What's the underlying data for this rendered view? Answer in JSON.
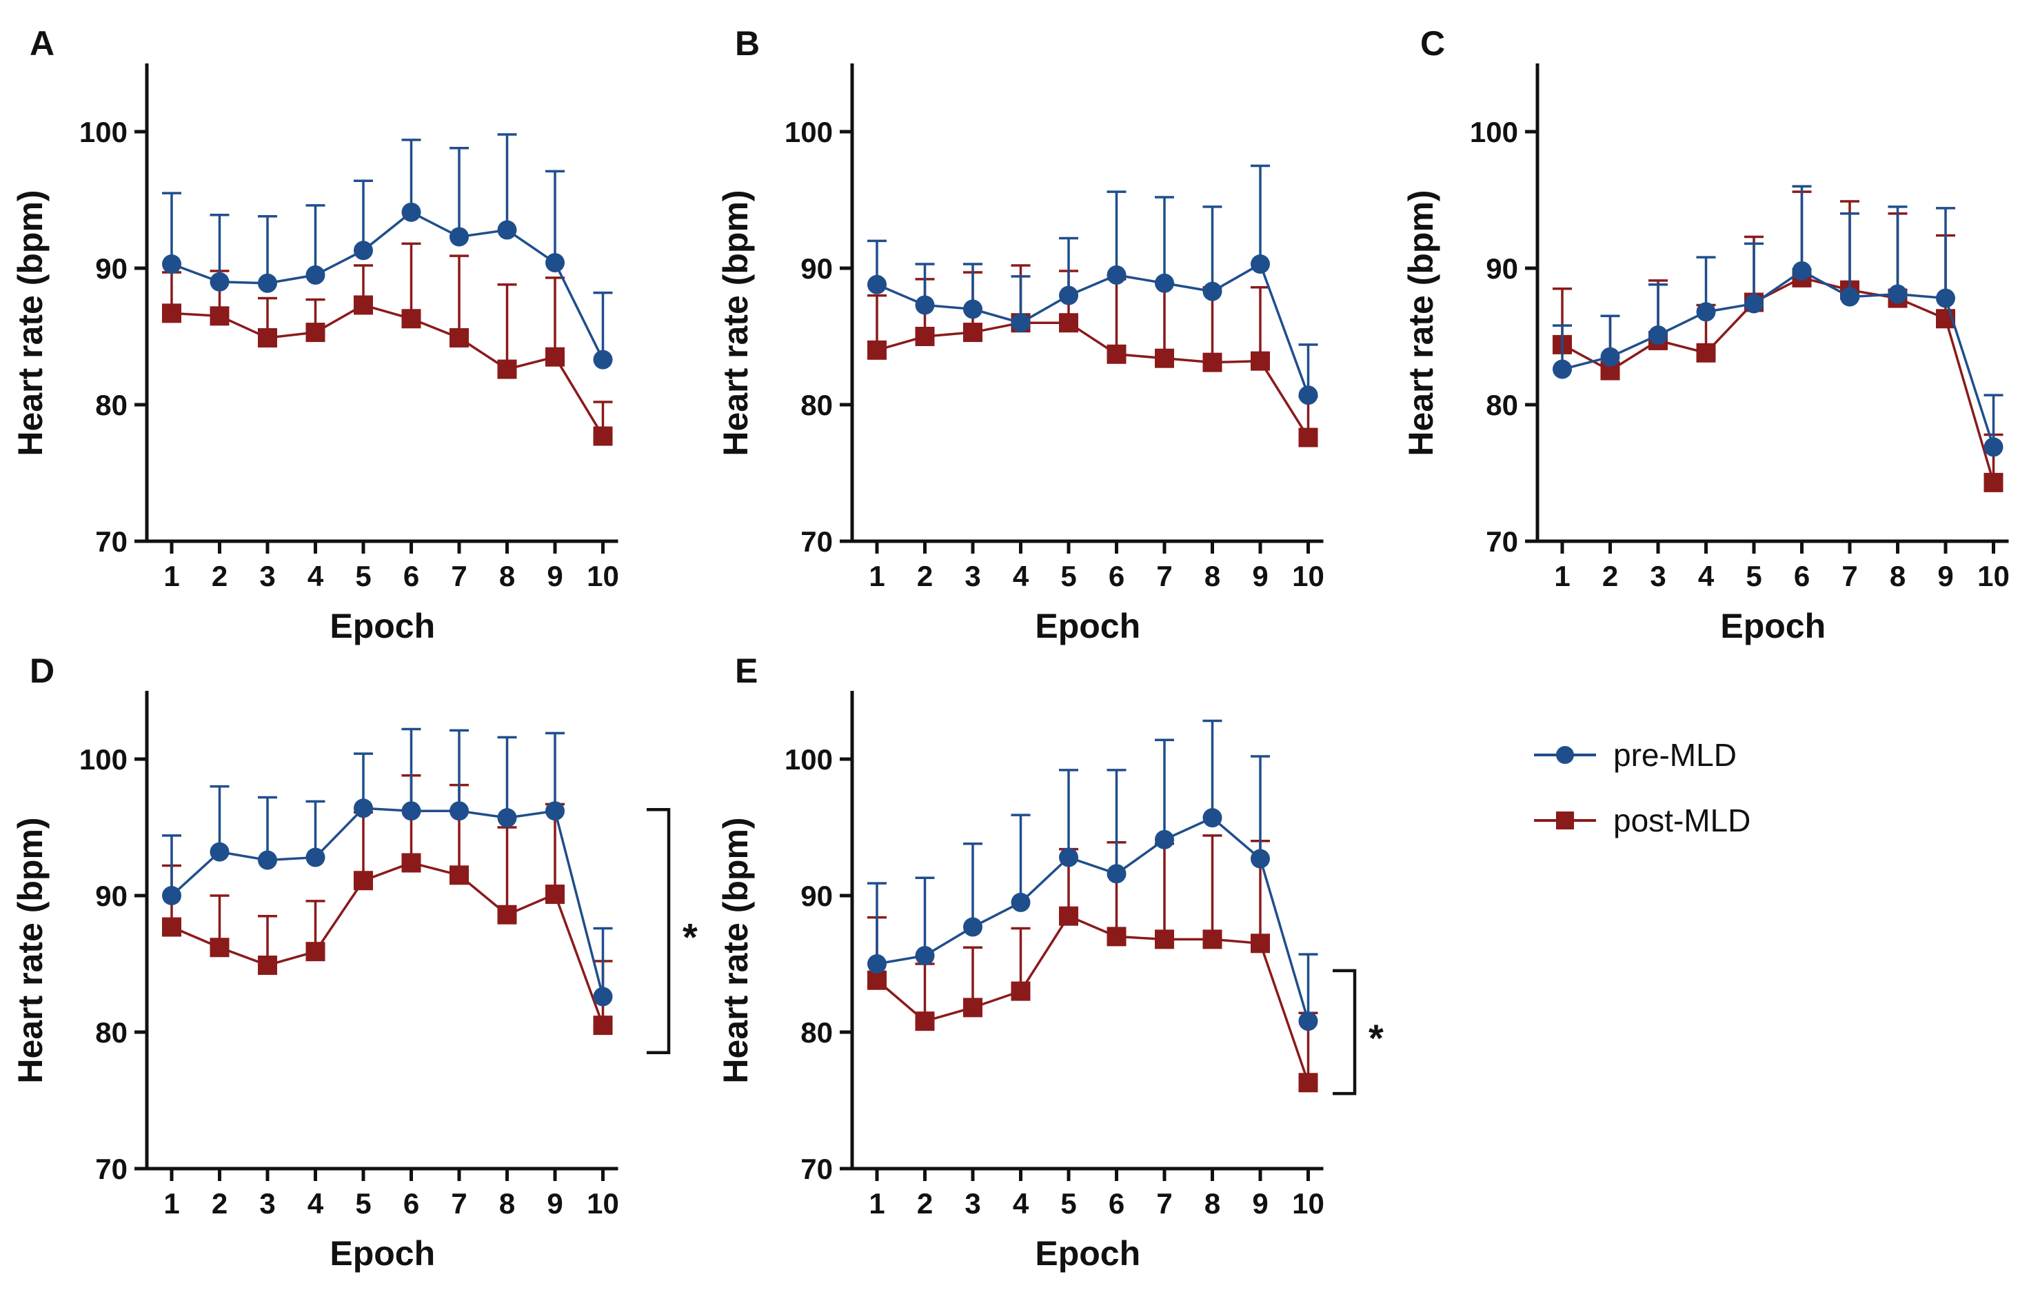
{
  "legend": {
    "pre_label": "pre-MLD",
    "post_label": "post-MLD"
  },
  "chart_data": [
    {
      "type": "line",
      "panel": "A",
      "xlabel": "Epoch",
      "ylabel": "Heart rate (bpm)",
      "x": [
        1,
        2,
        3,
        4,
        5,
        6,
        7,
        8,
        9,
        10
      ],
      "ylim": [
        70,
        105
      ],
      "yticks": [
        70,
        80,
        90,
        100
      ],
      "series": [
        {
          "name": "pre-MLD",
          "color": "#1F4E8C",
          "marker": "circle",
          "values": [
            90.3,
            89.0,
            88.9,
            89.5,
            91.3,
            94.1,
            92.3,
            92.8,
            90.4,
            83.3
          ],
          "err": [
            5.2,
            4.9,
            4.9,
            5.1,
            5.1,
            5.3,
            6.5,
            7.0,
            6.7,
            4.9
          ]
        },
        {
          "name": "post-MLD",
          "color": "#8B1A1A",
          "marker": "square",
          "values": [
            86.7,
            86.5,
            84.9,
            85.3,
            87.3,
            86.3,
            84.9,
            82.6,
            83.5,
            77.7
          ],
          "err": [
            3.0,
            3.3,
            2.9,
            2.4,
            2.9,
            5.5,
            6.0,
            6.2,
            5.8,
            2.5
          ]
        }
      ]
    },
    {
      "type": "line",
      "panel": "B",
      "xlabel": "Epoch",
      "ylabel": "Heart rate (bpm)",
      "x": [
        1,
        2,
        3,
        4,
        5,
        6,
        7,
        8,
        9,
        10
      ],
      "ylim": [
        70,
        105
      ],
      "yticks": [
        70,
        80,
        90,
        100
      ],
      "series": [
        {
          "name": "pre-MLD",
          "color": "#1F4E8C",
          "marker": "circle",
          "values": [
            88.8,
            87.3,
            87.0,
            86.0,
            88.0,
            89.5,
            88.9,
            88.3,
            90.3,
            80.7
          ],
          "err": [
            3.2,
            3.0,
            3.3,
            3.4,
            4.2,
            6.1,
            6.3,
            6.2,
            7.2,
            3.7
          ]
        },
        {
          "name": "post-MLD",
          "color": "#8B1A1A",
          "marker": "square",
          "values": [
            84.0,
            85.0,
            85.3,
            86.0,
            86.0,
            83.7,
            83.4,
            83.1,
            83.2,
            77.6
          ],
          "err": [
            4.0,
            4.2,
            4.4,
            4.2,
            3.8,
            5.5,
            5.5,
            5.5,
            5.4,
            3.0
          ]
        }
      ]
    },
    {
      "type": "line",
      "panel": "C",
      "xlabel": "Epoch",
      "ylabel": "Heart rate (bpm)",
      "x": [
        1,
        2,
        3,
        4,
        5,
        6,
        7,
        8,
        9,
        10
      ],
      "ylim": [
        70,
        105
      ],
      "yticks": [
        70,
        80,
        90,
        100
      ],
      "series": [
        {
          "name": "pre-MLD",
          "color": "#1F4E8C",
          "marker": "circle",
          "values": [
            82.6,
            83.5,
            85.1,
            86.8,
            87.4,
            89.8,
            87.9,
            88.1,
            87.8,
            76.9
          ],
          "err": [
            3.2,
            3.0,
            3.7,
            4.0,
            4.4,
            6.2,
            6.1,
            6.4,
            6.6,
            3.8
          ]
        },
        {
          "name": "post-MLD",
          "color": "#8B1A1A",
          "marker": "square",
          "values": [
            84.4,
            82.5,
            84.7,
            83.8,
            87.5,
            89.3,
            88.4,
            87.8,
            86.3,
            74.3
          ],
          "err": [
            4.1,
            4.0,
            4.4,
            3.5,
            4.8,
            6.3,
            6.5,
            6.2,
            6.1,
            3.5
          ]
        }
      ]
    },
    {
      "type": "line",
      "panel": "D",
      "xlabel": "Epoch",
      "ylabel": "Heart rate (bpm)",
      "x": [
        1,
        2,
        3,
        4,
        5,
        6,
        7,
        8,
        9,
        10
      ],
      "ylim": [
        70,
        105
      ],
      "yticks": [
        70,
        80,
        90,
        100
      ],
      "series": [
        {
          "name": "pre-MLD",
          "color": "#1F4E8C",
          "marker": "circle",
          "values": [
            90.0,
            93.2,
            92.6,
            92.8,
            96.4,
            96.2,
            96.2,
            95.7,
            96.2,
            82.6
          ],
          "err": [
            4.4,
            4.8,
            4.6,
            4.1,
            4.0,
            6.0,
            5.9,
            5.9,
            5.7,
            5.0
          ]
        },
        {
          "name": "post-MLD",
          "color": "#8B1A1A",
          "marker": "square",
          "values": [
            87.7,
            86.2,
            84.9,
            85.9,
            91.1,
            92.4,
            91.5,
            88.6,
            90.1,
            80.5
          ],
          "err": [
            4.5,
            3.8,
            3.6,
            3.7,
            5.0,
            6.4,
            6.6,
            6.4,
            6.6,
            4.7
          ]
        }
      ],
      "significance": {
        "label": "*",
        "y_from": 78.5,
        "y_to": 96.3
      }
    },
    {
      "type": "line",
      "panel": "E",
      "xlabel": "Epoch",
      "ylabel": "Heart rate (bpm)",
      "x": [
        1,
        2,
        3,
        4,
        5,
        6,
        7,
        8,
        9,
        10
      ],
      "ylim": [
        70,
        105
      ],
      "yticks": [
        70,
        80,
        90,
        100
      ],
      "series": [
        {
          "name": "pre-MLD",
          "color": "#1F4E8C",
          "marker": "circle",
          "values": [
            85.0,
            85.6,
            87.7,
            89.5,
            92.8,
            91.6,
            94.1,
            95.7,
            92.7,
            80.8
          ],
          "err": [
            5.9,
            5.7,
            6.1,
            6.4,
            6.4,
            7.6,
            7.3,
            7.1,
            7.5,
            4.9
          ]
        },
        {
          "name": "post-MLD",
          "color": "#8B1A1A",
          "marker": "square",
          "values": [
            83.8,
            80.8,
            81.8,
            83.0,
            88.5,
            87.0,
            86.8,
            86.8,
            86.5,
            76.3
          ],
          "err": [
            4.6,
            4.2,
            4.4,
            4.6,
            4.9,
            6.9,
            7.0,
            7.6,
            7.5,
            5.1
          ]
        }
      ],
      "significance": {
        "label": "*",
        "y_from": 75.5,
        "y_to": 84.5
      }
    }
  ]
}
